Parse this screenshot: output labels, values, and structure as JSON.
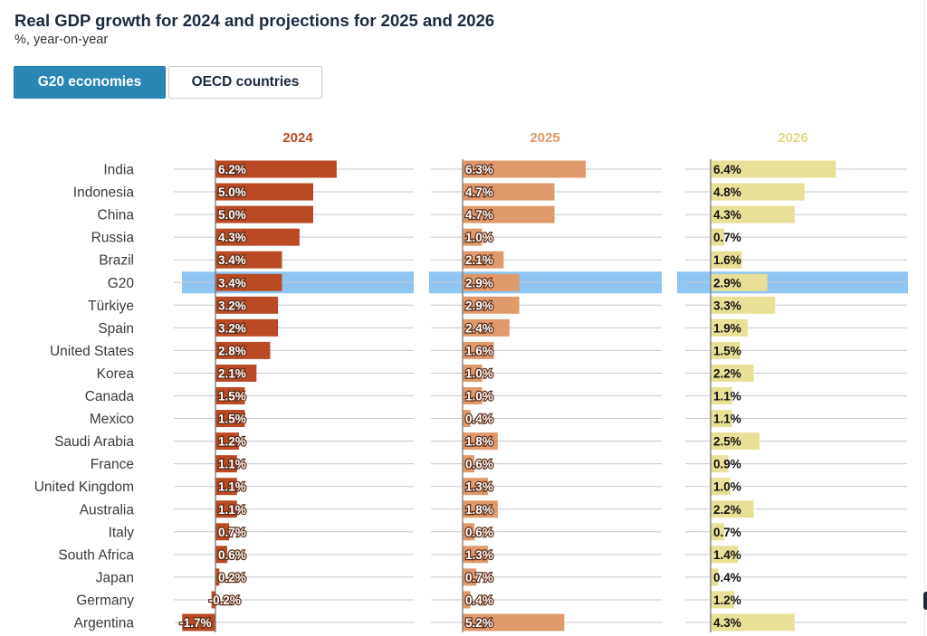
{
  "title": "Real GDP growth for 2024 and projections for 2025 and 2026",
  "subtitle": "%, year-on-year",
  "tabs": {
    "active": "G20 economies",
    "inactive": "OECD countries"
  },
  "chart_data": {
    "type": "bar",
    "orientation": "horizontal",
    "title": "Real GDP growth for 2024 and projections for 2025 and 2026",
    "unit": "%",
    "highlight": "G20",
    "categories": [
      "India",
      "Indonesia",
      "China",
      "Russia",
      "Brazil",
      "G20",
      "Türkiye",
      "Spain",
      "United States",
      "Korea",
      "Canada",
      "Mexico",
      "Saudi Arabia",
      "France",
      "United Kingdom",
      "Australia",
      "Italy",
      "South Africa",
      "Japan",
      "Germany",
      "Argentina"
    ],
    "series": [
      {
        "name": "2024",
        "color": "#b94a24",
        "label_style": "white",
        "values": [
          6.2,
          5.0,
          5.0,
          4.3,
          3.4,
          3.4,
          3.2,
          3.2,
          2.8,
          2.1,
          1.5,
          1.5,
          1.2,
          1.1,
          1.1,
          1.1,
          0.7,
          0.6,
          0.2,
          -0.2,
          -1.7
        ]
      },
      {
        "name": "2025",
        "color": "#e0996b",
        "label_style": "white",
        "values": [
          6.3,
          4.7,
          4.7,
          1.0,
          2.1,
          2.9,
          2.9,
          2.4,
          1.6,
          1.0,
          1.0,
          0.4,
          1.8,
          0.6,
          1.3,
          1.8,
          0.6,
          1.3,
          0.7,
          0.4,
          5.2
        ]
      },
      {
        "name": "2026",
        "color": "#e8e096",
        "label_style": "dark",
        "values": [
          6.4,
          4.8,
          4.3,
          0.7,
          1.6,
          2.9,
          3.3,
          1.9,
          1.5,
          2.2,
          1.1,
          1.1,
          2.5,
          0.9,
          1.0,
          2.2,
          0.7,
          1.4,
          0.4,
          1.2,
          4.3
        ]
      }
    ],
    "colors": {
      "highlight_band": "#8ec5f2",
      "title_2024": "#b94a24",
      "title_2025": "#e0996b",
      "title_2026": "#e0d88a"
    }
  }
}
